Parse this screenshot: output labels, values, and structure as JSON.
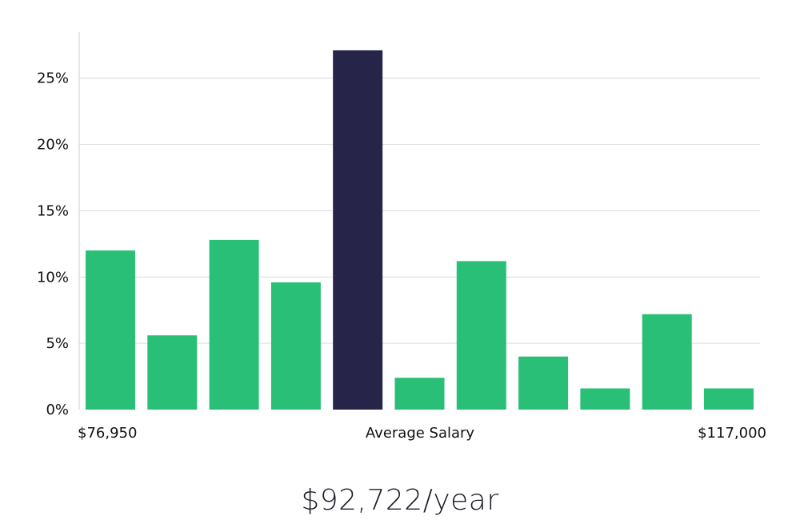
{
  "chart_data": {
    "type": "bar",
    "values": [
      12.0,
      5.6,
      12.8,
      9.6,
      27.1,
      2.4,
      11.2,
      4.0,
      1.6,
      7.2,
      1.6
    ],
    "highlight_index": 4,
    "ylim": [
      0,
      28
    ],
    "y_ticks": [
      0,
      5,
      10,
      15,
      20,
      25
    ],
    "y_tick_labels": [
      "0%",
      "5%",
      "10%",
      "15%",
      "20%",
      "25%"
    ],
    "x_min_label": "$76,950",
    "x_center_label": "Average Salary",
    "x_max_label": "$117,000",
    "grid": true
  },
  "colors": {
    "bar": "#2abf77",
    "highlight": "#27244a",
    "grid": "#dcdcdc"
  },
  "salary_label": "$92,722/year"
}
